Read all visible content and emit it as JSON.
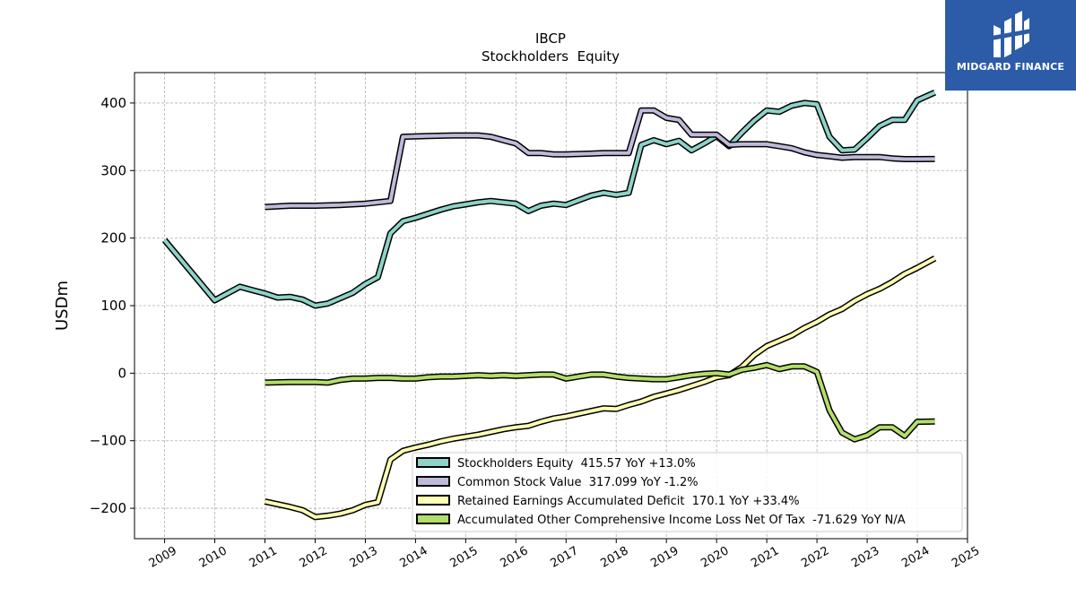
{
  "brand": {
    "name": "MIDGARD FINANCE",
    "bg_color": "#2c5ca8"
  },
  "chart_data": {
    "type": "line",
    "title": "IBCP",
    "subtitle": "Stockholders  Equity",
    "ylabel": "USDm",
    "xlim": [
      2008.4,
      2025.0
    ],
    "ylim": [
      -245,
      445
    ],
    "x_ticks": [
      2009,
      2010,
      2011,
      2012,
      2013,
      2014,
      2015,
      2016,
      2017,
      2018,
      2019,
      2020,
      2021,
      2022,
      2023,
      2024,
      2025
    ],
    "y_ticks": [
      -200,
      -100,
      0,
      100,
      200,
      300,
      400
    ],
    "grid": true,
    "legend_position": "lower-right",
    "series": [
      {
        "name": "Stockholders Equity",
        "legend_label": "Stockholders Equity  415.57 YoY +13.0%",
        "color": "#8dd3c7",
        "points": [
          [
            2009.0,
            197
          ],
          [
            2010.0,
            108
          ],
          [
            2010.5,
            128
          ],
          [
            2010.75,
            123
          ],
          [
            2011.0,
            118
          ],
          [
            2011.25,
            112
          ],
          [
            2011.5,
            113
          ],
          [
            2011.75,
            109
          ],
          [
            2012.0,
            100
          ],
          [
            2012.25,
            103
          ],
          [
            2012.5,
            111
          ],
          [
            2012.75,
            119
          ],
          [
            2013.0,
            132
          ],
          [
            2013.25,
            142
          ],
          [
            2013.5,
            207
          ],
          [
            2013.75,
            225
          ],
          [
            2014.0,
            230
          ],
          [
            2014.25,
            236
          ],
          [
            2014.5,
            242
          ],
          [
            2014.75,
            247
          ],
          [
            2015.0,
            250
          ],
          [
            2015.25,
            253
          ],
          [
            2015.5,
            255
          ],
          [
            2015.75,
            253
          ],
          [
            2016.0,
            251
          ],
          [
            2016.25,
            240
          ],
          [
            2016.5,
            248
          ],
          [
            2016.75,
            251
          ],
          [
            2017.0,
            249
          ],
          [
            2017.25,
            256
          ],
          [
            2017.5,
            263
          ],
          [
            2017.75,
            267
          ],
          [
            2018.0,
            264
          ],
          [
            2018.25,
            267
          ],
          [
            2018.5,
            338
          ],
          [
            2018.75,
            345
          ],
          [
            2019.0,
            339
          ],
          [
            2019.25,
            344
          ],
          [
            2019.5,
            330
          ],
          [
            2019.75,
            340
          ],
          [
            2020.0,
            351
          ],
          [
            2020.25,
            336
          ],
          [
            2020.5,
            356
          ],
          [
            2020.75,
            374
          ],
          [
            2021.0,
            389
          ],
          [
            2021.25,
            387
          ],
          [
            2021.5,
            396
          ],
          [
            2021.75,
            400
          ],
          [
            2022.0,
            398
          ],
          [
            2022.25,
            350
          ],
          [
            2022.5,
            330
          ],
          [
            2022.75,
            331
          ],
          [
            2023.0,
            348
          ],
          [
            2023.25,
            366
          ],
          [
            2023.5,
            375
          ],
          [
            2023.75,
            375
          ],
          [
            2024.0,
            404
          ],
          [
            2024.35,
            415.57
          ]
        ]
      },
      {
        "name": "Common Stock Value",
        "legend_label": "Common Stock Value  317.099 YoY -1.2%",
        "color": "#bebada",
        "points": [
          [
            2011.0,
            246
          ],
          [
            2011.5,
            248
          ],
          [
            2012.0,
            248
          ],
          [
            2012.5,
            249
          ],
          [
            2013.0,
            251
          ],
          [
            2013.5,
            255
          ],
          [
            2013.75,
            350
          ],
          [
            2014.25,
            351
          ],
          [
            2014.75,
            352
          ],
          [
            2015.0,
            352
          ],
          [
            2015.25,
            352
          ],
          [
            2015.5,
            350
          ],
          [
            2015.75,
            345
          ],
          [
            2016.0,
            340
          ],
          [
            2016.25,
            326
          ],
          [
            2016.5,
            326
          ],
          [
            2016.75,
            324
          ],
          [
            2017.0,
            324
          ],
          [
            2017.5,
            325
          ],
          [
            2017.75,
            326
          ],
          [
            2018.0,
            326
          ],
          [
            2018.25,
            326
          ],
          [
            2018.5,
            389
          ],
          [
            2018.75,
            389
          ],
          [
            2019.0,
            378
          ],
          [
            2019.25,
            375
          ],
          [
            2019.5,
            353
          ],
          [
            2019.75,
            353
          ],
          [
            2020.0,
            353
          ],
          [
            2020.25,
            338
          ],
          [
            2020.5,
            339
          ],
          [
            2020.75,
            339
          ],
          [
            2021.0,
            339
          ],
          [
            2021.25,
            336
          ],
          [
            2021.5,
            333
          ],
          [
            2021.75,
            327
          ],
          [
            2022.0,
            323
          ],
          [
            2022.25,
            321
          ],
          [
            2022.5,
            319
          ],
          [
            2022.75,
            320
          ],
          [
            2023.0,
            320
          ],
          [
            2023.25,
            320
          ],
          [
            2023.5,
            318
          ],
          [
            2023.75,
            317
          ],
          [
            2024.0,
            317
          ],
          [
            2024.35,
            317.1
          ]
        ]
      },
      {
        "name": "Retained Earnings Accumulated Deficit",
        "legend_label": "Retained Earnings Accumulated Deficit  170.1 YoY +33.4%",
        "color": "#ffffb3",
        "points": [
          [
            2011.0,
            -190
          ],
          [
            2011.5,
            -198
          ],
          [
            2011.75,
            -203
          ],
          [
            2012.0,
            -213
          ],
          [
            2012.25,
            -211
          ],
          [
            2012.5,
            -208
          ],
          [
            2012.75,
            -203
          ],
          [
            2013.0,
            -195
          ],
          [
            2013.25,
            -191
          ],
          [
            2013.5,
            -128
          ],
          [
            2013.75,
            -115
          ],
          [
            2014.0,
            -110
          ],
          [
            2014.25,
            -106
          ],
          [
            2014.5,
            -101
          ],
          [
            2014.75,
            -97
          ],
          [
            2015.0,
            -94
          ],
          [
            2015.25,
            -91
          ],
          [
            2015.5,
            -87
          ],
          [
            2015.75,
            -83
          ],
          [
            2016.0,
            -80
          ],
          [
            2016.25,
            -78
          ],
          [
            2016.5,
            -72
          ],
          [
            2016.75,
            -67
          ],
          [
            2017.0,
            -64
          ],
          [
            2017.25,
            -60
          ],
          [
            2017.5,
            -56
          ],
          [
            2017.75,
            -52
          ],
          [
            2018.0,
            -53
          ],
          [
            2018.25,
            -47
          ],
          [
            2018.5,
            -42
          ],
          [
            2018.75,
            -35
          ],
          [
            2019.0,
            -30
          ],
          [
            2019.25,
            -25
          ],
          [
            2019.5,
            -19
          ],
          [
            2019.75,
            -13
          ],
          [
            2020.0,
            -6
          ],
          [
            2020.25,
            -3
          ],
          [
            2020.5,
            9
          ],
          [
            2020.75,
            27
          ],
          [
            2021.0,
            40
          ],
          [
            2021.25,
            48
          ],
          [
            2021.5,
            56
          ],
          [
            2021.75,
            67
          ],
          [
            2022.0,
            76
          ],
          [
            2022.25,
            87
          ],
          [
            2022.5,
            95
          ],
          [
            2022.75,
            107
          ],
          [
            2023.0,
            117
          ],
          [
            2023.25,
            125
          ],
          [
            2023.5,
            135
          ],
          [
            2023.75,
            147
          ],
          [
            2024.0,
            156
          ],
          [
            2024.35,
            170.1
          ]
        ]
      },
      {
        "name": "Accumulated Other Comprehensive Income Loss Net Of Tax",
        "legend_label": "Accumulated Other Comprehensive Income Loss Net Of Tax  -71.629 YoY N/A",
        "color": "#b3de69",
        "points": [
          [
            2011.0,
            -14
          ],
          [
            2011.5,
            -13
          ],
          [
            2012.0,
            -13
          ],
          [
            2012.25,
            -14
          ],
          [
            2012.5,
            -10
          ],
          [
            2012.75,
            -8
          ],
          [
            2013.0,
            -8
          ],
          [
            2013.25,
            -7
          ],
          [
            2013.5,
            -7
          ],
          [
            2013.75,
            -8
          ],
          [
            2014.0,
            -8
          ],
          [
            2014.25,
            -6
          ],
          [
            2014.5,
            -5
          ],
          [
            2014.75,
            -5
          ],
          [
            2015.0,
            -4
          ],
          [
            2015.25,
            -3
          ],
          [
            2015.5,
            -4
          ],
          [
            2015.75,
            -3
          ],
          [
            2016.0,
            -4
          ],
          [
            2016.25,
            -3
          ],
          [
            2016.5,
            -2
          ],
          [
            2016.75,
            -2
          ],
          [
            2017.0,
            -8
          ],
          [
            2017.25,
            -5
          ],
          [
            2017.5,
            -2
          ],
          [
            2017.75,
            -2
          ],
          [
            2018.0,
            -5
          ],
          [
            2018.25,
            -7
          ],
          [
            2018.5,
            -8
          ],
          [
            2018.75,
            -9
          ],
          [
            2019.0,
            -9
          ],
          [
            2019.25,
            -6
          ],
          [
            2019.5,
            -3
          ],
          [
            2019.75,
            -1
          ],
          [
            2020.0,
            0
          ],
          [
            2020.25,
            -2
          ],
          [
            2020.5,
            5
          ],
          [
            2020.75,
            8
          ],
          [
            2021.0,
            12
          ],
          [
            2021.25,
            6
          ],
          [
            2021.5,
            10
          ],
          [
            2021.75,
            10
          ],
          [
            2022.0,
            2
          ],
          [
            2022.25,
            -55
          ],
          [
            2022.5,
            -88
          ],
          [
            2022.75,
            -98
          ],
          [
            2023.0,
            -92
          ],
          [
            2023.25,
            -80
          ],
          [
            2023.5,
            -80
          ],
          [
            2023.75,
            -93
          ],
          [
            2024.0,
            -72
          ],
          [
            2024.35,
            -71.63
          ]
        ]
      }
    ]
  }
}
